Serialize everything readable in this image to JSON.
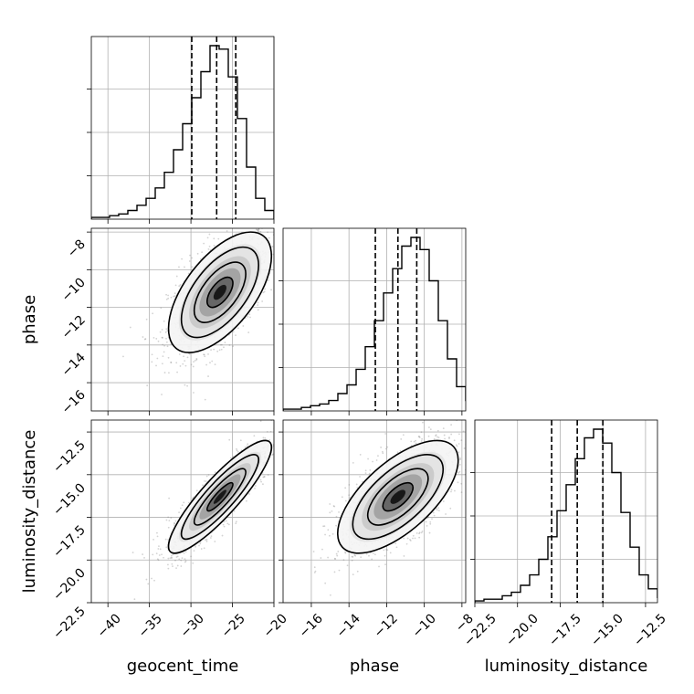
{
  "chart_data": {
    "type": "corner",
    "parameters": [
      {
        "name": "geocent_time",
        "range": [
          -42,
          -20
        ],
        "ticks": [
          -40,
          -35,
          -30,
          -25,
          -20
        ]
      },
      {
        "name": "phase",
        "range": [
          -17.5,
          -7.8
        ],
        "ticks": [
          -16,
          -14,
          -12,
          -10,
          -8
        ]
      },
      {
        "name": "luminosity_distance",
        "range": [
          -22.5,
          -11.8
        ],
        "ticks": [
          -22.5,
          -20.0,
          -17.5,
          -15.0,
          -12.5
        ]
      }
    ],
    "labels": {
      "x": [
        "geocent_time",
        "phase",
        "luminosity_distance"
      ],
      "y": [
        "",
        "phase",
        "luminosity_distance"
      ],
      "x_ticks": [
        [
          "-40",
          "-35",
          "-30",
          "-25",
          "-20"
        ],
        [
          "-16",
          "-14",
          "-12",
          "-10",
          "-8"
        ],
        [
          "-22.5",
          "-20.0",
          "-17.5",
          "-15.0",
          "-12.5"
        ]
      ],
      "y_ticks": [
        [],
        [
          "-8",
          "-10",
          "-12",
          "-14",
          "-16"
        ],
        [
          "-12.5",
          "-15.0",
          "-17.5",
          "-20.0",
          "-22.5"
        ]
      ]
    },
    "histograms": [
      {
        "param": "geocent_time",
        "edges_start": -42,
        "bin_width": 1.1,
        "counts": [
          0.01,
          0.01,
          0.02,
          0.03,
          0.05,
          0.08,
          0.12,
          0.18,
          0.27,
          0.4,
          0.55,
          0.7,
          0.85,
          1.0,
          0.98,
          0.82,
          0.58,
          0.3,
          0.12,
          0.05
        ]
      },
      {
        "param": "phase",
        "edges_start": -17.5,
        "bin_width": 0.485,
        "counts": [
          0.01,
          0.01,
          0.02,
          0.03,
          0.04,
          0.06,
          0.1,
          0.15,
          0.24,
          0.37,
          0.52,
          0.68,
          0.82,
          0.95,
          1.0,
          0.93,
          0.75,
          0.52,
          0.3,
          0.14,
          0.06,
          0.02
        ]
      },
      {
        "param": "luminosity_distance",
        "edges_start": -22.5,
        "bin_width": 0.535,
        "counts": [
          0.01,
          0.02,
          0.02,
          0.04,
          0.06,
          0.1,
          0.16,
          0.25,
          0.38,
          0.53,
          0.68,
          0.83,
          0.95,
          1.0,
          0.92,
          0.75,
          0.52,
          0.32,
          0.16,
          0.08,
          0.03
        ]
      }
    ],
    "quantiles": {
      "geocent_time": [
        -29.9,
        -26.9,
        -24.6
      ],
      "phase": [
        -12.6,
        -11.4,
        -10.4
      ],
      "luminosity_distance": [
        -18.0,
        -16.5,
        -15.0
      ]
    },
    "pairs": [
      {
        "x": "geocent_time",
        "y": "phase",
        "center": [
          -26.5,
          -11.2
        ],
        "sd": [
          3.1,
          1.6
        ],
        "rho": 0.6
      },
      {
        "x": "geocent_time",
        "y": "luminosity_distance",
        "center": [
          -26.5,
          -16.3
        ],
        "sd": [
          3.1,
          1.65
        ],
        "rho": 0.88
      },
      {
        "x": "phase",
        "y": "luminosity_distance",
        "center": [
          -11.4,
          -16.3
        ],
        "sd": [
          1.6,
          1.65
        ],
        "rho": 0.65
      }
    ],
    "grid": true,
    "colors": {
      "line": "#000000",
      "grid": "#b0b0b0",
      "points": "#808080"
    }
  }
}
